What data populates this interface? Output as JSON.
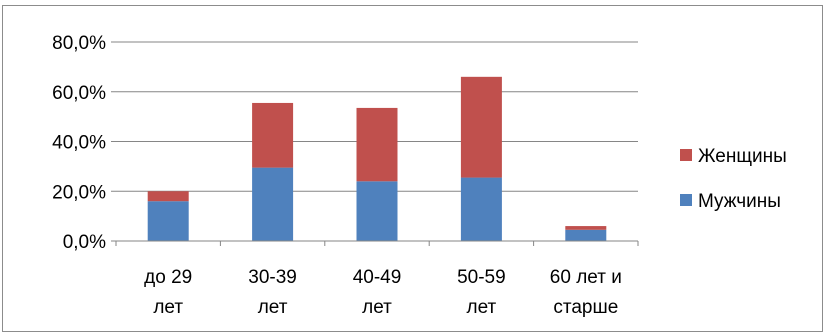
{
  "chart_data": {
    "type": "bar",
    "stacked": true,
    "categories": [
      [
        "до 29",
        "лет"
      ],
      [
        "30-39",
        "лет"
      ],
      [
        "40-49",
        "лет"
      ],
      [
        "50-59",
        "лет"
      ],
      [
        "60 лет и",
        "старше"
      ]
    ],
    "series": [
      {
        "name": "Мужчины",
        "color": "#4f81bd",
        "values": [
          16.0,
          29.5,
          24.0,
          25.5,
          4.5
        ]
      },
      {
        "name": "Женщины",
        "color": "#c0504d",
        "values": [
          4.0,
          26.0,
          29.5,
          40.5,
          1.5
        ]
      }
    ],
    "ylim": [
      0,
      80
    ],
    "yticks": [
      "0,0%",
      "20,0%",
      "40,0%",
      "60,0%",
      "80,0%"
    ],
    "ytick_values": [
      0,
      20,
      40,
      60,
      80
    ],
    "grid": true,
    "legend": {
      "position": "right",
      "order": [
        "Женщины",
        "Мужчины"
      ]
    },
    "title": "",
    "xlabel": "",
    "ylabel": ""
  }
}
